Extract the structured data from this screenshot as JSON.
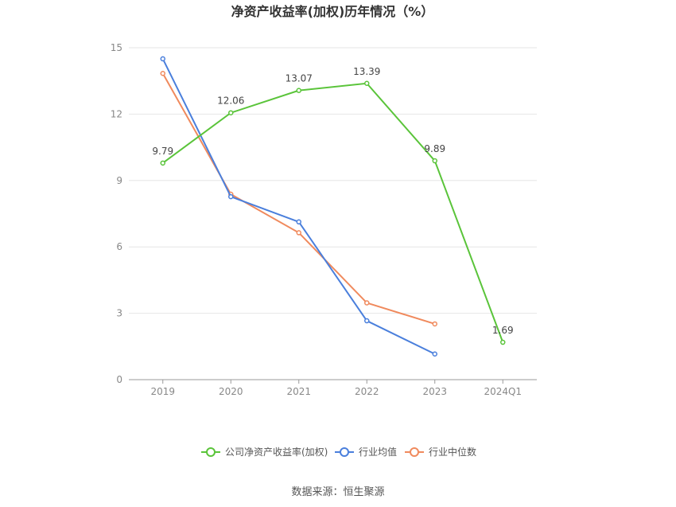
{
  "chart_data": {
    "type": "line",
    "title": "净资产收益率(加权)历年情况（%）",
    "categories": [
      "2019",
      "2020",
      "2021",
      "2022",
      "2023",
      "2024Q1"
    ],
    "ylim": [
      0,
      15
    ],
    "yticks": [
      0,
      3,
      6,
      9,
      12,
      15
    ],
    "grid": true,
    "legend_position": "bottom",
    "series": [
      {
        "name": "公司净资产收益率(加权)",
        "color": "#5ac43a",
        "values": [
          9.79,
          12.06,
          13.07,
          13.39,
          9.89,
          1.69
        ],
        "labels": [
          "9.79",
          "12.06",
          "13.07",
          "13.39",
          "9.89",
          "1.69"
        ]
      },
      {
        "name": "行业均值",
        "color": "#4a7fdc",
        "values": [
          14.5,
          8.27,
          7.13,
          2.66,
          1.16,
          null
        ]
      },
      {
        "name": "行业中位数",
        "color": "#f08a5d",
        "values": [
          13.84,
          8.38,
          6.64,
          3.47,
          2.52,
          null
        ]
      }
    ]
  },
  "source": "数据来源：恒生聚源"
}
